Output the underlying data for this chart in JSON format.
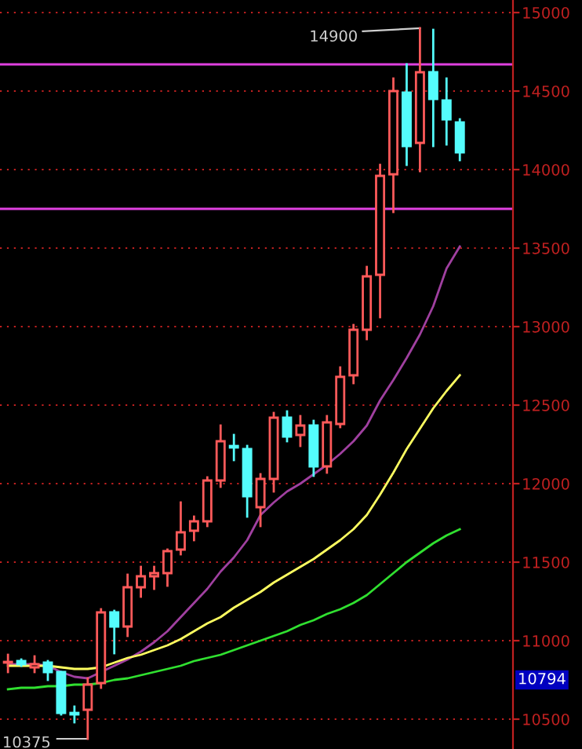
{
  "chart_data": {
    "type": "candlestick",
    "categories": [
      null,
      null,
      null,
      null,
      null,
      null,
      null,
      null,
      null,
      null,
      null,
      null,
      null,
      null,
      null,
      null,
      null,
      null,
      null,
      null,
      null,
      null,
      null,
      null,
      null,
      null,
      null,
      null,
      null,
      null,
      null,
      null,
      null,
      null,
      null
    ],
    "ohlc": [
      [
        10860,
        10910,
        10800,
        10865
      ],
      [
        10870,
        10880,
        10840,
        10850
      ],
      [
        10830,
        10900,
        10800,
        10850
      ],
      [
        10860,
        10870,
        10750,
        10800
      ],
      [
        10800,
        10800,
        10530,
        10540
      ],
      [
        10540,
        10580,
        10480,
        10530
      ],
      [
        10560,
        10760,
        10375,
        10720
      ],
      [
        10730,
        11200,
        10700,
        11180
      ],
      [
        11180,
        11190,
        10920,
        11090
      ],
      [
        11090,
        11420,
        11030,
        11340
      ],
      [
        11340,
        11470,
        11280,
        11410
      ],
      [
        11410,
        11470,
        11330,
        11430
      ],
      [
        11430,
        11580,
        11350,
        11570
      ],
      [
        11580,
        11880,
        11550,
        11690
      ],
      [
        11700,
        11790,
        11640,
        11760
      ],
      [
        11760,
        12040,
        11730,
        12020
      ],
      [
        12020,
        12370,
        11980,
        12270
      ],
      [
        12240,
        12310,
        12150,
        12230
      ],
      [
        12220,
        12240,
        11790,
        11920
      ],
      [
        11850,
        12060,
        11730,
        12030
      ],
      [
        12030,
        12450,
        11950,
        12420
      ],
      [
        12420,
        12460,
        12270,
        12300
      ],
      [
        12310,
        12430,
        12240,
        12370
      ],
      [
        12370,
        12400,
        12050,
        12110
      ],
      [
        12110,
        12430,
        12070,
        12390
      ],
      [
        12380,
        12740,
        12360,
        12680
      ],
      [
        12690,
        13010,
        12640,
        12980
      ],
      [
        12980,
        13380,
        12920,
        13320
      ],
      [
        13330,
        14030,
        13060,
        13960
      ],
      [
        13970,
        14580,
        13730,
        14500
      ],
      [
        14490,
        14670,
        14030,
        14150
      ],
      [
        14170,
        14900,
        13990,
        14620
      ],
      [
        14620,
        14890,
        14150,
        14450
      ],
      [
        14440,
        14580,
        14160,
        14320
      ],
      [
        14300,
        14320,
        14060,
        14110
      ]
    ],
    "colors": [
      "#ff5a5a",
      "#54fcfc",
      "#ff5a5a",
      "#54fcfc",
      "#54fcfc",
      "#54fcfc",
      "#ff5a5a",
      "#ff5a5a",
      "#54fcfc",
      "#ff5a5a",
      "#ff5a5a",
      "#ff5a5a",
      "#ff5a5a",
      "#ff5a5a",
      "#ff5a5a",
      "#ff5a5a",
      "#ff5a5a",
      "#54fcfc",
      "#54fcfc",
      "#ff5a5a",
      "#ff5a5a",
      "#54fcfc",
      "#ff5a5a",
      "#54fcfc",
      "#ff5a5a",
      "#ff5a5a",
      "#ff5a5a",
      "#ff5a5a",
      "#ff5a5a",
      "#ff5a5a",
      "#54fcfc",
      "#ff5a5a",
      "#54fcfc",
      "#54fcfc",
      "#54fcfc"
    ],
    "series": [
      {
        "type": "line",
        "color": "#a040a0",
        "values": [
          10850,
          10850,
          10850,
          10840,
          10800,
          10770,
          10760,
          10800,
          10840,
          10880,
          10930,
          10990,
          11060,
          11150,
          11240,
          11330,
          11440,
          11530,
          11640,
          11800,
          11880,
          11950,
          12000,
          12060,
          12120,
          12190,
          12270,
          12370,
          12530,
          12660,
          12800,
          12950,
          13130,
          13370,
          13510
        ]
      },
      {
        "type": "line",
        "color": "#ffff60",
        "values": [
          10840,
          10840,
          10840,
          10840,
          10830,
          10820,
          10820,
          10830,
          10860,
          10890,
          10910,
          10940,
          10970,
          11010,
          11060,
          11110,
          11150,
          11210,
          11260,
          11310,
          11370,
          11420,
          11470,
          11520,
          11580,
          11640,
          11710,
          11800,
          11930,
          12070,
          12220,
          12350,
          12480,
          12590,
          12690
        ]
      },
      {
        "type": "line",
        "color": "#30e030",
        "values": [
          10690,
          10700,
          10700,
          10710,
          10710,
          10720,
          10720,
          10730,
          10750,
          10760,
          10780,
          10800,
          10820,
          10840,
          10870,
          10890,
          10910,
          10940,
          10970,
          11000,
          11030,
          11060,
          11100,
          11130,
          11170,
          11200,
          11240,
          11290,
          11360,
          11430,
          11500,
          11560,
          11620,
          11670,
          11710
        ]
      }
    ],
    "ref_lines": [
      {
        "axis": "y",
        "value": 14670,
        "color": "#e040e0"
      },
      {
        "axis": "y",
        "value": 13750,
        "color": "#e040e0"
      }
    ],
    "annotations": [
      "14900",
      "10375",
      "10794"
    ],
    "ylim": [
      10310,
      15080
    ],
    "yticks": [
      10500,
      11000,
      11500,
      12000,
      12500,
      13000,
      13500,
      14000,
      14500,
      15000
    ],
    "grid": "y"
  }
}
